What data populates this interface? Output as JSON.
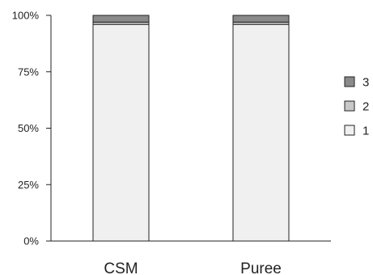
{
  "chart_data": {
    "type": "bar",
    "stacked": true,
    "percent": true,
    "categories": [
      "CSM",
      "Puree"
    ],
    "series": [
      {
        "name": "1",
        "values": [
          96,
          96
        ],
        "color": "#f0f0f0"
      },
      {
        "name": "2",
        "values": [
          1,
          1
        ],
        "color": "#c8c8c8"
      },
      {
        "name": "3",
        "values": [
          3,
          3
        ],
        "color": "#8a8a8a"
      }
    ],
    "ylim": [
      0,
      100
    ],
    "yticks": [
      "0%",
      "25%",
      "50%",
      "75%",
      "100%"
    ],
    "ytick_values": [
      0,
      25,
      50,
      75,
      100
    ],
    "legend": {
      "position": "right",
      "order": [
        "3",
        "2",
        "1"
      ]
    },
    "grid": false,
    "title": "",
    "xlabel": "",
    "ylabel": ""
  }
}
